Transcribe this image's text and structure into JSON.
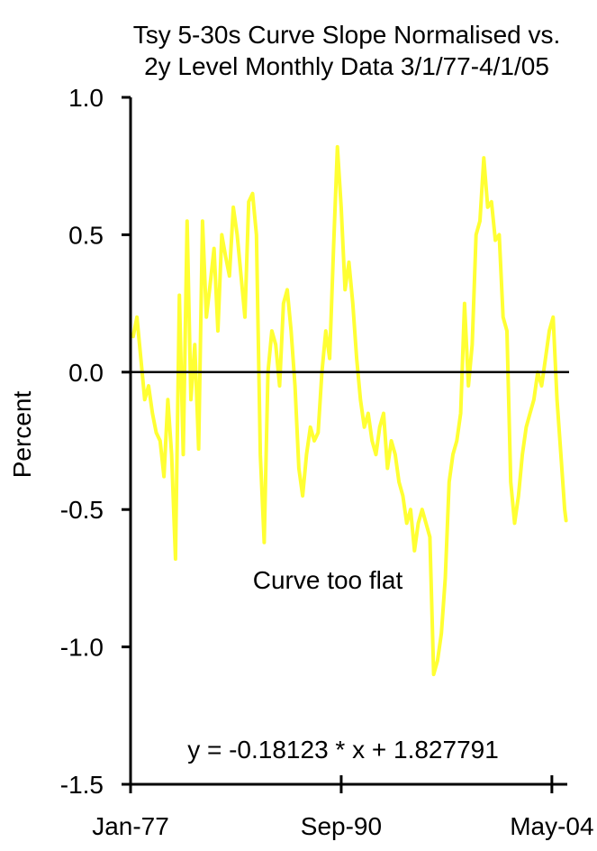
{
  "chart_data": {
    "type": "line",
    "title_line1": "Tsy 5-30s Curve Slope Normalised vs.",
    "title_line2": "2y Level Monthly Data 3/1/77-4/1/05",
    "ylabel": "Percent",
    "xlabel": "",
    "ylim": [
      -1.5,
      1.0
    ],
    "yticks": [
      {
        "value": 1.0,
        "label": "1.0"
      },
      {
        "value": 0.5,
        "label": "0.5"
      },
      {
        "value": 0.0,
        "label": "0.0"
      },
      {
        "value": -0.5,
        "label": "-0.5"
      },
      {
        "value": -1.0,
        "label": "-1.0"
      },
      {
        "value": -1.5,
        "label": "-1.5"
      }
    ],
    "xlim": [
      "1977-01",
      "2005-05"
    ],
    "xticks": [
      {
        "value": "1977-01",
        "label": "Jan-77"
      },
      {
        "value": "1990-09",
        "label": "Sep-90"
      },
      {
        "value": "2004-05",
        "label": "May-04"
      }
    ],
    "zero_line": true,
    "grid": false,
    "annotations": {
      "curve_note": "Curve too flat",
      "equation": "y = -0.18123 * x + 1.827791"
    },
    "colors": {
      "series": "#ffff33",
      "axis": "#000000",
      "zero_line": "#000000"
    },
    "series": [
      {
        "x": [
          "1977-03",
          "1977-06",
          "1977-09",
          "1977-12",
          "1978-03",
          "1978-06",
          "1978-09",
          "1978-12",
          "1979-03",
          "1979-06",
          "1979-09",
          "1979-12",
          "1980-03",
          "1980-06",
          "1980-09",
          "1980-12",
          "1981-03",
          "1981-06",
          "1981-09",
          "1981-12",
          "1982-03",
          "1982-06",
          "1982-09",
          "1982-12",
          "1983-03",
          "1983-06",
          "1983-09",
          "1983-12",
          "1984-03",
          "1984-06",
          "1984-09",
          "1984-12",
          "1985-03",
          "1985-06",
          "1985-09",
          "1985-12",
          "1986-03",
          "1986-06",
          "1986-09",
          "1986-12",
          "1987-03",
          "1987-06",
          "1987-09",
          "1987-12",
          "1988-03",
          "1988-06",
          "1988-09",
          "1988-12",
          "1989-03",
          "1989-06",
          "1989-09",
          "1989-12",
          "1990-03",
          "1990-06",
          "1990-09",
          "1990-12",
          "1991-03",
          "1991-06",
          "1991-09",
          "1991-12",
          "1992-03",
          "1992-06",
          "1992-09",
          "1992-12",
          "1993-03",
          "1993-06",
          "1993-09",
          "1993-12",
          "1994-03",
          "1994-06",
          "1994-09",
          "1994-12",
          "1995-03",
          "1995-06",
          "1995-09",
          "1995-12",
          "1996-03",
          "1996-06",
          "1996-09",
          "1996-12",
          "1997-03",
          "1997-06",
          "1997-09",
          "1997-12",
          "1998-03",
          "1998-06",
          "1998-09",
          "1998-12",
          "1999-03",
          "1999-06",
          "1999-09",
          "1999-12",
          "2000-03",
          "2000-06",
          "2000-09",
          "2000-12",
          "2001-03",
          "2001-06",
          "2001-09",
          "2001-12",
          "2002-03",
          "2002-06",
          "2002-09",
          "2002-12",
          "2003-03",
          "2003-06",
          "2003-09",
          "2003-12",
          "2004-03",
          "2004-06",
          "2004-09",
          "2004-12",
          "2005-03",
          "2005-04"
        ],
        "values": [
          0.13,
          0.2,
          0.05,
          -0.1,
          -0.05,
          -0.15,
          -0.22,
          -0.25,
          -0.38,
          -0.1,
          -0.3,
          -0.68,
          0.28,
          -0.3,
          0.55,
          -0.1,
          0.1,
          -0.28,
          0.55,
          0.2,
          0.32,
          0.45,
          0.15,
          0.5,
          0.42,
          0.35,
          0.6,
          0.5,
          0.35,
          0.2,
          0.62,
          0.65,
          0.5,
          -0.3,
          -0.62,
          0.0,
          0.15,
          0.1,
          -0.05,
          0.25,
          0.3,
          0.15,
          -0.05,
          -0.35,
          -0.45,
          -0.3,
          -0.2,
          -0.25,
          -0.22,
          0.0,
          0.15,
          0.05,
          0.45,
          0.82,
          0.6,
          0.3,
          0.4,
          0.25,
          0.05,
          -0.1,
          -0.2,
          -0.15,
          -0.25,
          -0.3,
          -0.2,
          -0.15,
          -0.35,
          -0.25,
          -0.3,
          -0.4,
          -0.45,
          -0.55,
          -0.5,
          -0.65,
          -0.55,
          -0.5,
          -0.55,
          -0.6,
          -1.1,
          -1.05,
          -0.95,
          -0.75,
          -0.4,
          -0.3,
          -0.25,
          -0.15,
          0.25,
          -0.05,
          0.1,
          0.5,
          0.55,
          0.78,
          0.6,
          0.62,
          0.48,
          0.5,
          0.2,
          0.15,
          -0.4,
          -0.55,
          -0.45,
          -0.3,
          -0.2,
          -0.15,
          -0.1,
          0.0,
          -0.05,
          0.05,
          0.15,
          0.2,
          -0.1,
          -0.3,
          -0.5,
          -0.54
        ]
      }
    ]
  }
}
